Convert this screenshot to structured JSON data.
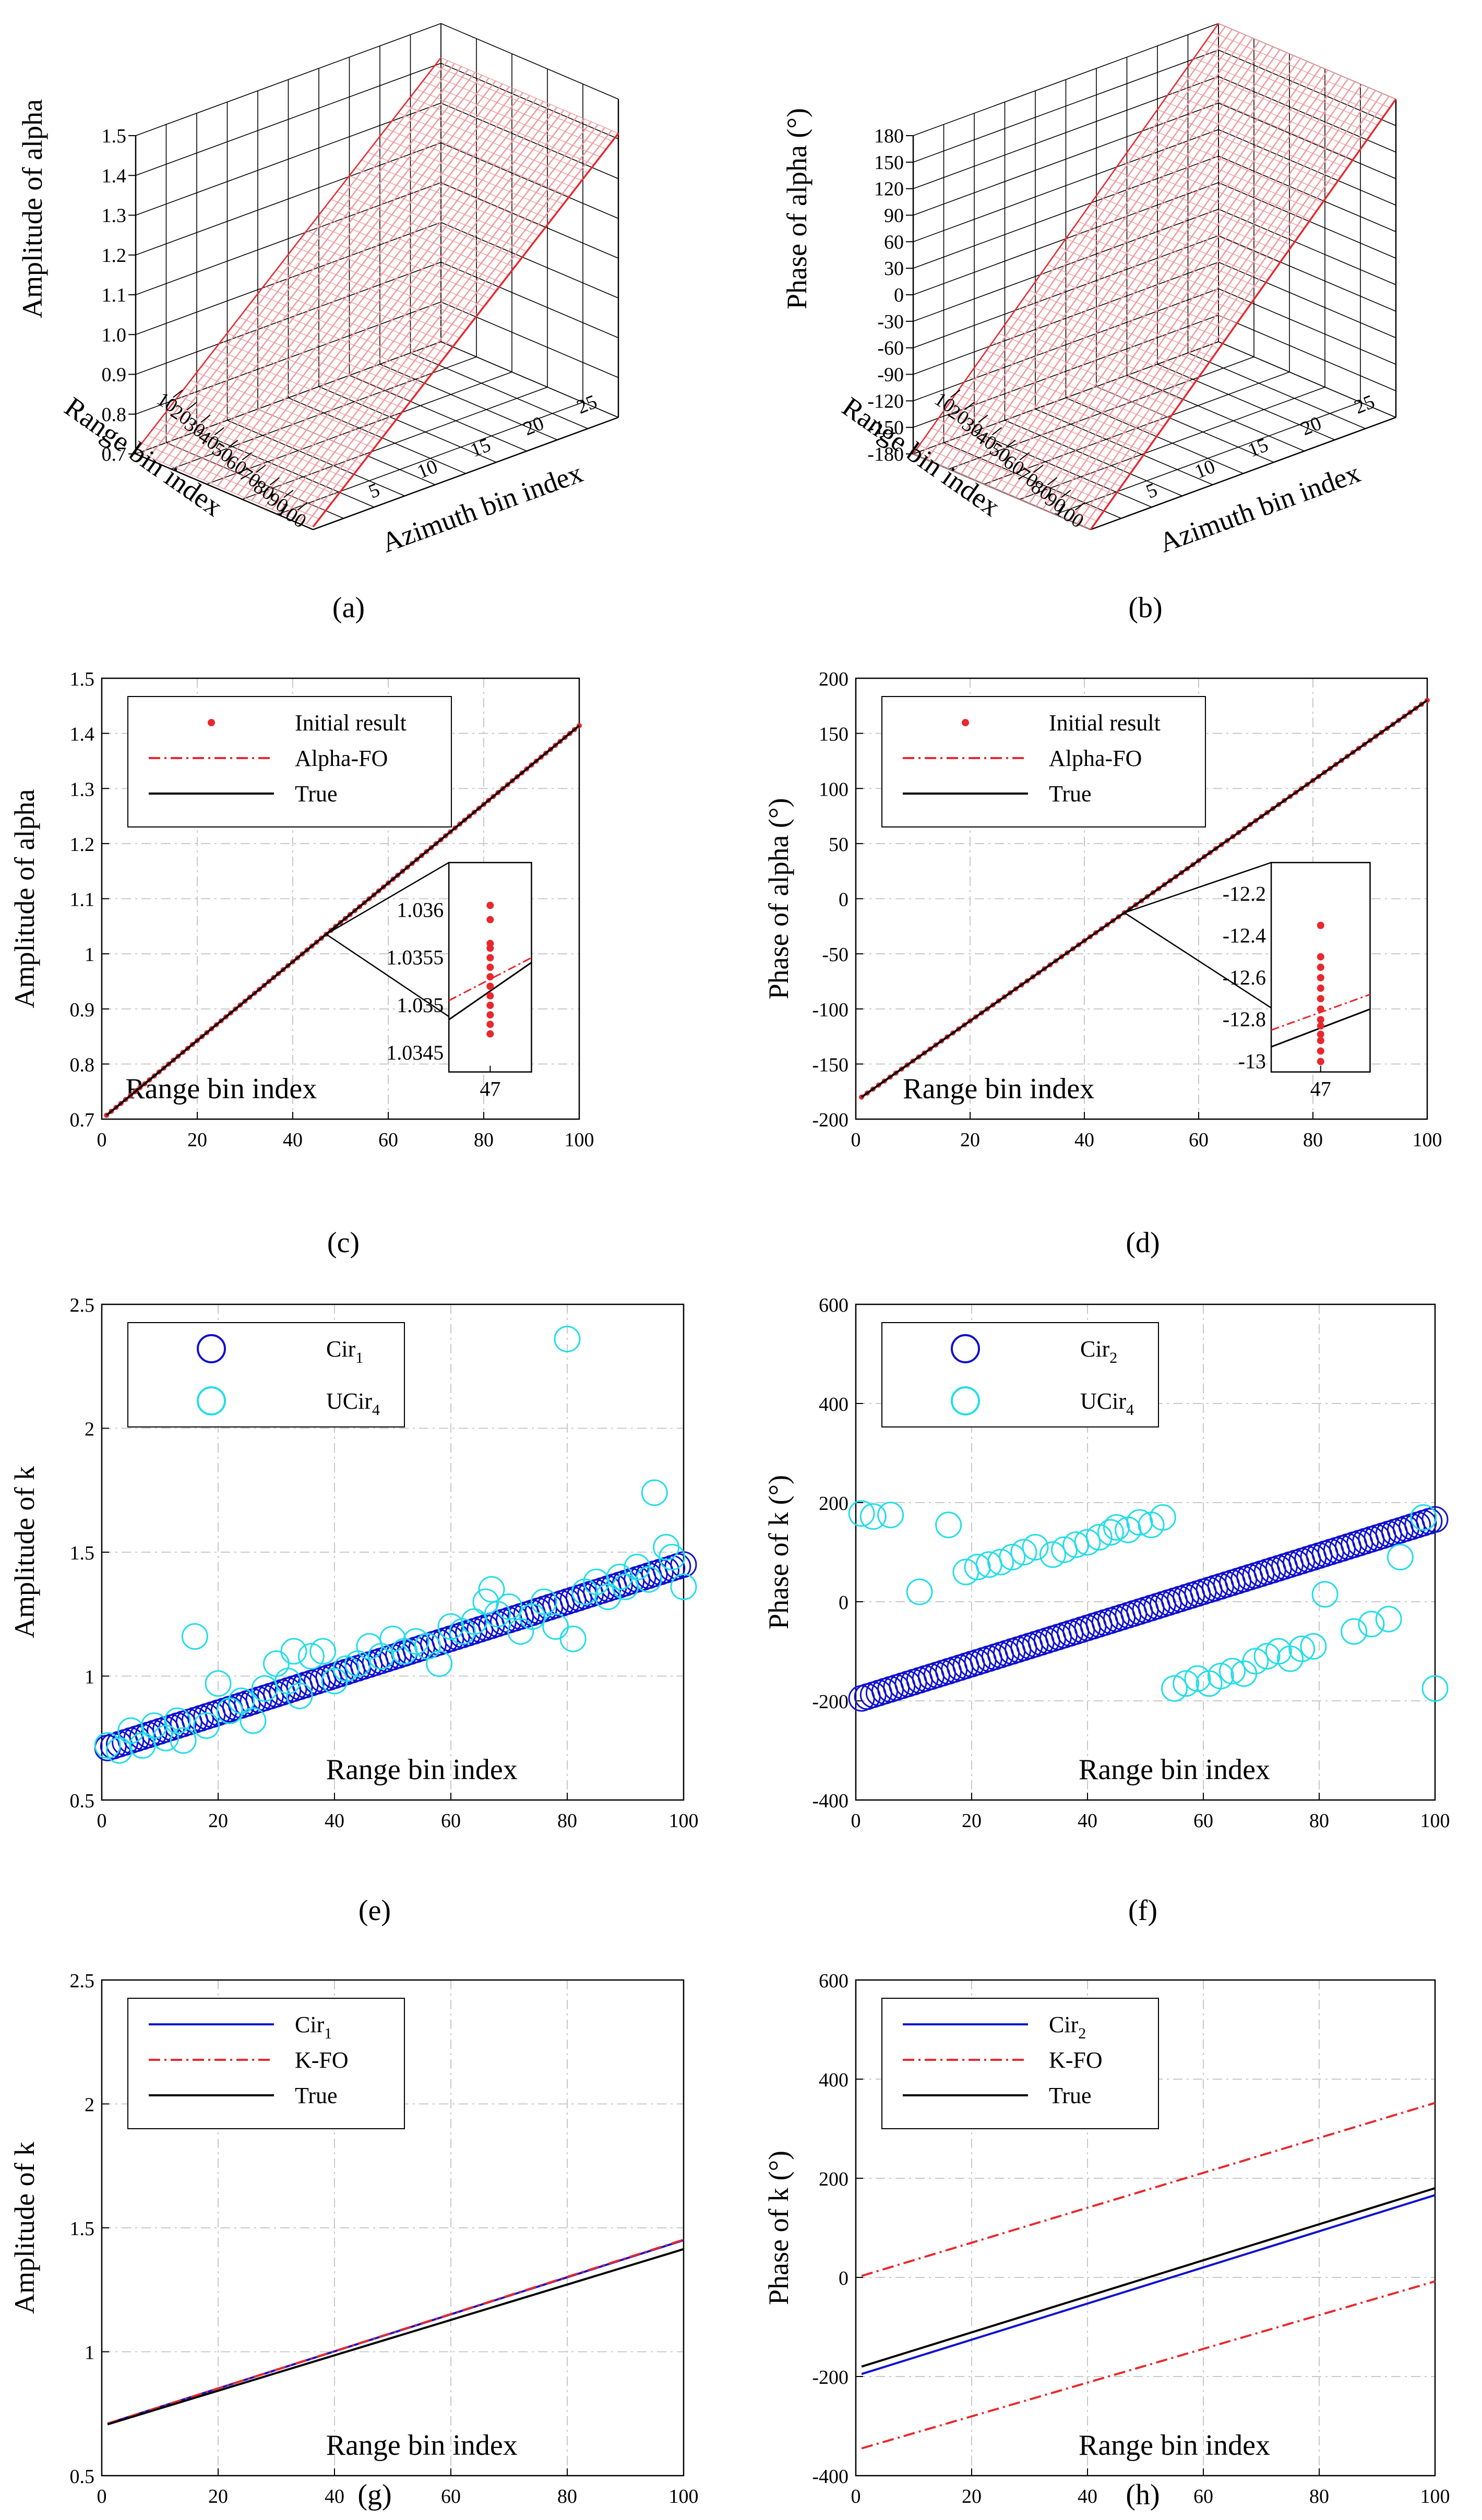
{
  "colors": {
    "red": "#e8282d",
    "hatch": "#f09aa0",
    "blue": "#1010d0",
    "cyan": "#22dde8",
    "black": "#000000",
    "grid": "#c8c8c8"
  },
  "chart_data": [
    {
      "id": "a",
      "type": "surface3d",
      "caption": "(a)",
      "zlabel": "Amplitude of alpha",
      "xlabel": "Azimuth bin index",
      "ylabel": "Range bin index",
      "zlim": [
        0.7,
        1.5
      ],
      "zticks": [
        "0.7",
        "0.8",
        "0.9",
        "1.0",
        "1.1",
        "1.2",
        "1.3",
        "1.4",
        "1.5"
      ],
      "xticks": [
        "5",
        "10",
        "15",
        "20",
        "25"
      ],
      "yticks": [
        "10",
        "20",
        "30",
        "40",
        "50",
        "60",
        "70",
        "80",
        "90",
        "100"
      ],
      "xrange": [
        1,
        27
      ],
      "yrange": [
        1,
        101
      ],
      "zrange": [
        0.7,
        1.5
      ],
      "surface": {
        "z_at_range_1": 0.707,
        "z_at_range_100": 1.414
      }
    },
    {
      "id": "b",
      "type": "surface3d",
      "caption": "(b)",
      "zlabel": "Phase of alpha (°)",
      "xlabel": "Azimuth bin index",
      "ylabel": "Range bin index",
      "zlim": [
        -180,
        180
      ],
      "zticks": [
        "-180",
        "-150",
        "-120",
        "-90",
        "-60",
        "-30",
        "0",
        "30",
        "60",
        "90",
        "120",
        "150",
        "180"
      ],
      "xticks": [
        "5",
        "10",
        "15",
        "20",
        "25"
      ],
      "yticks": [
        "10",
        "20",
        "30",
        "40",
        "50",
        "60",
        "70",
        "80",
        "90",
        "100"
      ],
      "xrange": [
        1,
        27
      ],
      "yrange": [
        1,
        101
      ],
      "zrange": [
        -180,
        180
      ],
      "surface": {
        "z_at_range_1": -180,
        "z_at_range_100": 180
      }
    },
    {
      "id": "c",
      "type": "line",
      "caption": "(c)",
      "ylabel": "Amplitude of alpha",
      "inner_label": "Range bin index",
      "xlim": [
        0,
        100
      ],
      "ylim": [
        0.7,
        1.5
      ],
      "xticks": [
        0,
        20,
        40,
        60,
        80,
        100
      ],
      "yticks": [
        0.7,
        0.8,
        0.9,
        1.0,
        1.1,
        1.2,
        1.3,
        1.4,
        1.5
      ],
      "ytick_labels": [
        "0.7",
        "0.8",
        "0.9",
        "1",
        "1.1",
        "1.2",
        "1.3",
        "1.4",
        "1.5"
      ],
      "legend": [
        "Initial result",
        "Alpha-FO",
        "True"
      ],
      "series": [
        {
          "name": "Initial result",
          "style": "dots",
          "x_from": 1,
          "x_to": 100,
          "y_from": 0.707,
          "y_to": 1.414
        },
        {
          "name": "Alpha-FO",
          "style": "dashdot",
          "x": [
            1,
            100
          ],
          "y": [
            0.707,
            1.414
          ]
        },
        {
          "name": "True",
          "style": "solid",
          "x": [
            1,
            100
          ],
          "y": [
            0.707,
            1.414
          ]
        }
      ],
      "inset": {
        "anchor_x": 47,
        "xtick": "47",
        "yticks": [
          "1.036",
          "1.0355",
          "1.035",
          "1.0345"
        ],
        "ylim": [
          1.0343,
          1.0365
        ],
        "points": [
          1.03605,
          1.0359,
          1.03565,
          1.0356,
          1.0355,
          1.0354,
          1.0353,
          1.0352,
          1.0351,
          1.035,
          1.0349,
          1.0348,
          1.0347
        ],
        "alpha_fo": [
          1.03505,
          1.0355
        ],
        "true": [
          1.03485,
          1.03545
        ]
      }
    },
    {
      "id": "d",
      "type": "line",
      "caption": "(d)",
      "ylabel": "Phase of alpha (°)",
      "inner_label": "Range bin index",
      "xlim": [
        0,
        100
      ],
      "ylim": [
        -200,
        200
      ],
      "xticks": [
        0,
        20,
        40,
        60,
        80,
        100
      ],
      "yticks": [
        -200,
        -150,
        -100,
        -50,
        0,
        50,
        100,
        150,
        200
      ],
      "ytick_labels": [
        "-200",
        "-150",
        "-100",
        "-50",
        "0",
        "50",
        "100",
        "150",
        "200"
      ],
      "legend": [
        "Initial result",
        "Alpha-FO",
        "True"
      ],
      "series": [
        {
          "name": "Initial result",
          "style": "dots",
          "x_from": 1,
          "x_to": 100,
          "y_from": -180,
          "y_to": 180
        },
        {
          "name": "Alpha-FO",
          "style": "dashdot",
          "x": [
            1,
            100
          ],
          "y": [
            -180,
            180
          ]
        },
        {
          "name": "True",
          "style": "solid",
          "x": [
            1,
            100
          ],
          "y": [
            -180,
            180
          ]
        }
      ],
      "inset": {
        "anchor_x": 47,
        "xtick": "47",
        "yticks": [
          "-12.2",
          "-12.4",
          "-12.6",
          "-12.8",
          "-13"
        ],
        "ylim": [
          -13.05,
          -12.05
        ],
        "points": [
          -12.35,
          -12.5,
          -12.55,
          -12.6,
          -12.65,
          -12.7,
          -12.75,
          -12.8,
          -12.83,
          -12.87,
          -12.9,
          -12.95,
          -13.0
        ],
        "alpha_fo": [
          -12.85,
          -12.68
        ],
        "true": [
          -12.93,
          -12.75
        ]
      }
    },
    {
      "id": "e",
      "type": "scatter",
      "caption": "(e)",
      "ylabel": "Amplitude of k",
      "inner_label": "Range bin index",
      "xlim": [
        0,
        100
      ],
      "ylim": [
        0.5,
        2.5
      ],
      "xticks": [
        0,
        20,
        40,
        60,
        80,
        100
      ],
      "yticks": [
        0.5,
        1.0,
        1.5,
        2.0,
        2.5
      ],
      "ytick_labels": [
        "0.5",
        "1",
        "1.5",
        "2",
        "2.5"
      ],
      "legend": [
        {
          "base": "Cir",
          "sub": "1"
        },
        {
          "base": "UCir",
          "sub": "4"
        }
      ],
      "series": [
        {
          "name": "Cir1",
          "style": "circles",
          "x_from": 1,
          "x_to": 100,
          "y_from": 0.71,
          "y_to": 1.45
        },
        {
          "name": "UCir4",
          "style": "circles",
          "x": [
            1,
            3,
            5,
            7,
            9,
            11,
            13,
            14,
            16,
            18,
            20,
            22,
            24,
            26,
            28,
            30,
            32,
            33,
            34,
            36,
            38,
            40,
            42,
            44,
            46,
            48,
            50,
            52,
            54,
            56,
            58,
            60,
            62,
            64,
            66,
            67,
            68,
            70,
            72,
            74,
            76,
            78,
            80,
            81,
            83,
            85,
            87,
            89,
            90,
            92,
            94,
            95,
            97,
            98,
            100
          ],
          "y": [
            0.72,
            0.7,
            0.78,
            0.72,
            0.8,
            0.75,
            0.82,
            0.74,
            1.16,
            0.8,
            0.97,
            0.86,
            0.9,
            0.82,
            0.95,
            1.05,
            0.98,
            1.1,
            0.92,
            1.08,
            1.1,
            0.98,
            1.03,
            1.05,
            1.12,
            1.08,
            1.15,
            1.1,
            1.14,
            1.12,
            1.05,
            1.2,
            1.18,
            1.22,
            1.3,
            1.35,
            1.25,
            1.28,
            1.18,
            1.24,
            1.3,
            1.2,
            2.36,
            1.15,
            1.34,
            1.38,
            1.32,
            1.4,
            1.36,
            1.44,
            1.39,
            1.74,
            1.52,
            1.48,
            1.36
          ]
        }
      ]
    },
    {
      "id": "f",
      "type": "scatter",
      "caption": "(f)",
      "ylabel": "Phase of k (°)",
      "inner_label": "Range bin index",
      "xlim": [
        0,
        100
      ],
      "ylim": [
        -400,
        600
      ],
      "xticks": [
        0,
        20,
        40,
        60,
        80,
        100
      ],
      "yticks": [
        -400,
        -200,
        0,
        200,
        400,
        600
      ],
      "ytick_labels": [
        "-400",
        "-200",
        "0",
        "200",
        "400",
        "600"
      ],
      "legend": [
        {
          "base": "Cir",
          "sub": "2"
        },
        {
          "base": "UCir",
          "sub": "4"
        }
      ],
      "series": [
        {
          "name": "Cir2",
          "style": "circles",
          "x_from": 1,
          "x_to": 100,
          "y_from": -195,
          "y_to": 166
        },
        {
          "name": "UCir4",
          "style": "circles",
          "x": [
            1,
            3,
            6,
            11,
            16,
            19,
            21,
            23,
            25,
            27,
            29,
            31,
            34,
            36,
            38,
            40,
            42,
            44,
            45,
            47,
            49,
            51,
            53,
            55,
            57,
            59,
            61,
            63,
            65,
            67,
            69,
            71,
            73,
            75,
            77,
            79,
            81,
            86,
            89,
            92,
            94,
            98,
            100
          ],
          "y": [
            178,
            172,
            175,
            20,
            155,
            60,
            70,
            75,
            80,
            90,
            100,
            110,
            95,
            105,
            115,
            120,
            130,
            140,
            150,
            145,
            160,
            155,
            170,
            -175,
            -165,
            -155,
            -165,
            -150,
            -140,
            -145,
            -120,
            -110,
            -100,
            -115,
            -95,
            -90,
            15,
            -60,
            -45,
            -35,
            90,
            170,
            -175
          ]
        }
      ]
    },
    {
      "id": "g",
      "type": "line",
      "caption": "(g)",
      "ylabel": "Amplitude of k",
      "inner_label": "Range bin index",
      "xlim": [
        0,
        100
      ],
      "ylim": [
        0.5,
        2.5
      ],
      "xticks": [
        0,
        20,
        40,
        60,
        80,
        100
      ],
      "yticks": [
        0.5,
        1.0,
        1.5,
        2.0,
        2.5
      ],
      "ytick_labels": [
        "0.5",
        "1",
        "1.5",
        "2",
        "2.5"
      ],
      "legend": [
        {
          "base": "Cir",
          "sub": "1"
        },
        {
          "base": "K-FO",
          "sub": ""
        },
        {
          "base": "True",
          "sub": ""
        }
      ],
      "series": [
        {
          "name": "Cir1",
          "style": "solid",
          "x": [
            1,
            100
          ],
          "y": [
            0.71,
            1.45
          ]
        },
        {
          "name": "K-FO",
          "style": "dashdot",
          "x": [
            1,
            100
          ],
          "y": [
            0.71,
            1.452
          ]
        },
        {
          "name": "True",
          "style": "solid",
          "x": [
            1,
            100
          ],
          "y": [
            0.707,
            1.414
          ]
        }
      ]
    },
    {
      "id": "h",
      "type": "line",
      "caption": "(h)",
      "ylabel": "Phase of k (°)",
      "inner_label": "Range bin index",
      "xlim": [
        0,
        100
      ],
      "ylim": [
        -400,
        600
      ],
      "xticks": [
        0,
        20,
        40,
        60,
        80,
        100
      ],
      "yticks": [
        -400,
        -200,
        0,
        200,
        400,
        600
      ],
      "ytick_labels": [
        "-400",
        "-200",
        "0",
        "200",
        "400",
        "600"
      ],
      "legend": [
        {
          "base": "Cir",
          "sub": "2"
        },
        {
          "base": "K-FO",
          "sub": ""
        },
        {
          "base": "True",
          "sub": ""
        }
      ],
      "series": [
        {
          "name": "Cir2",
          "style": "solid",
          "x": [
            1,
            100
          ],
          "y": [
            -195,
            166
          ]
        },
        {
          "name": "K-FO",
          "style": "dashdot",
          "x": [
            1,
            100
          ],
          "y": [
            3,
            352
          ]
        },
        {
          "name": "K-FO",
          "style": "dashdot",
          "x": [
            1,
            100
          ],
          "y": [
            -345,
            -8
          ]
        },
        {
          "name": "True",
          "style": "solid",
          "x": [
            1,
            100
          ],
          "y": [
            -180,
            180
          ]
        }
      ]
    }
  ]
}
